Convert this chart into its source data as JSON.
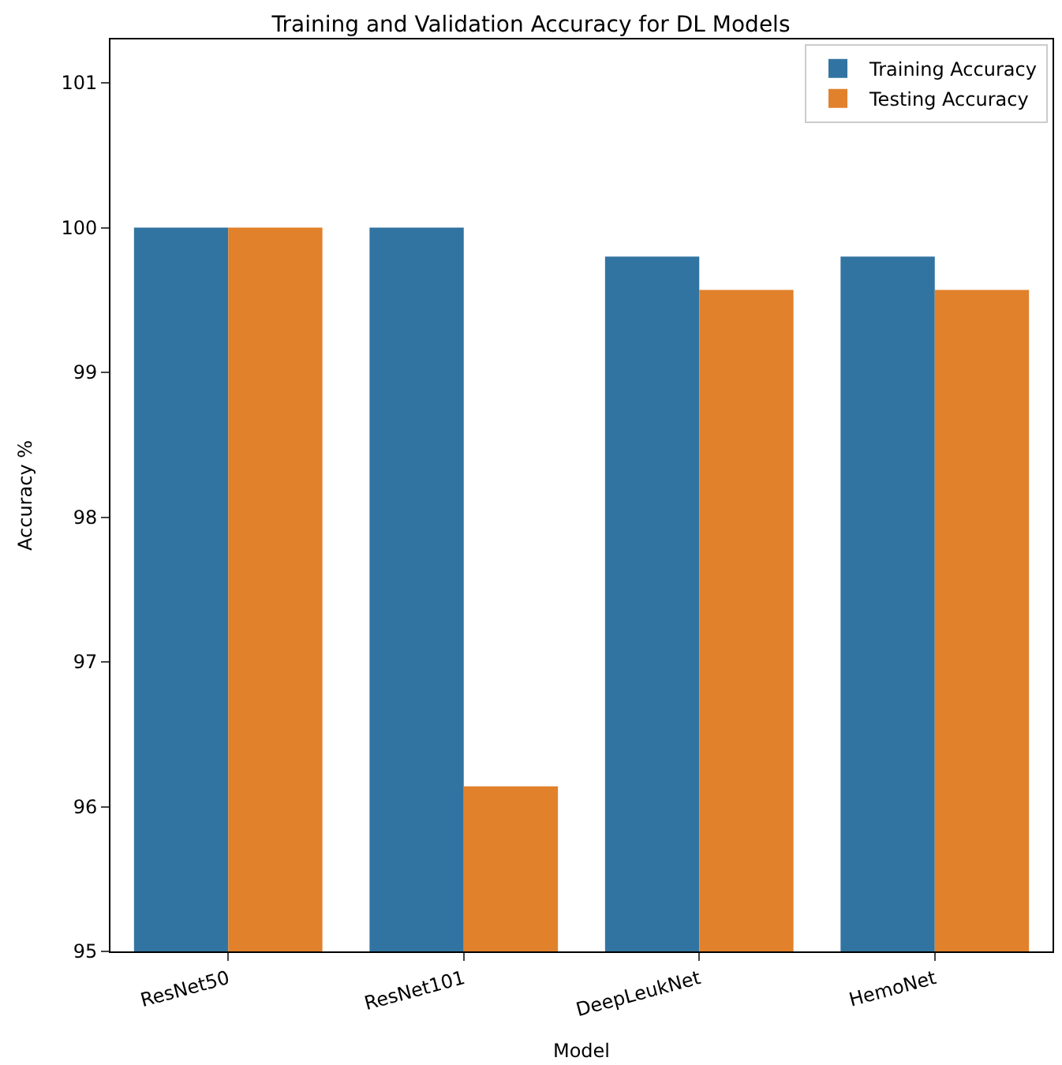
{
  "chart_data": {
    "type": "bar",
    "title": "Training and Validation Accuracy for DL Models",
    "xlabel": "Model",
    "ylabel": "Accuracy %",
    "categories": [
      "ResNet50",
      "ResNet101",
      "DeepLeukNet",
      "HemoNet"
    ],
    "series": [
      {
        "name": "Training Accuracy",
        "color": "#3274a1",
        "values": [
          100,
          100,
          99.8,
          99.8
        ]
      },
      {
        "name": "Testing Accuracy",
        "color": "#e1812c",
        "values": [
          100,
          96.14,
          99.57,
          99.57
        ]
      }
    ],
    "ylim": [
      95,
      101.3
    ],
    "yticks": [
      95,
      96,
      97,
      98,
      99,
      100,
      101
    ],
    "legend": "top right"
  }
}
